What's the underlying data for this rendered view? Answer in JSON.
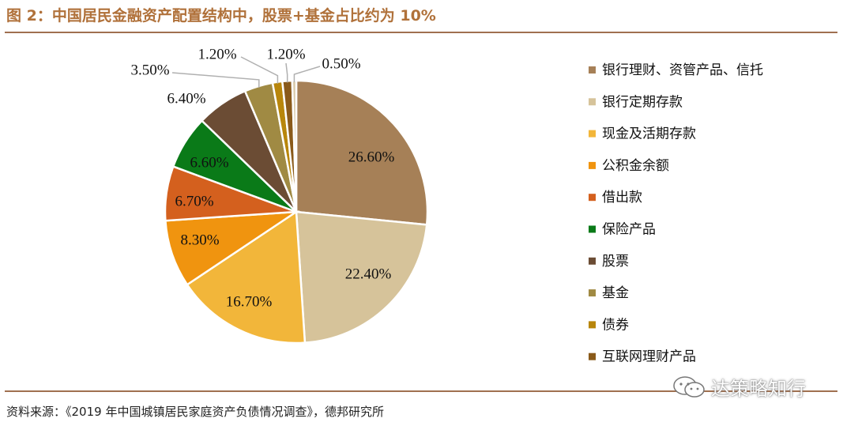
{
  "header": {
    "title": "图 2：中国居民金融资产配置结构中，股票+基金占比约为 10%"
  },
  "footer": {
    "source": "资料来源：《2019 年中国城镇居民家庭资产负债情况调查》，德邦研究所",
    "watermark": "达策略知行"
  },
  "chart_data": {
    "type": "pie",
    "title": "",
    "legend_position": "right",
    "start_angle": "12 o'clock, clockwise",
    "slices": [
      {
        "label": "银行理财、资管产品、信托",
        "value": 26.6,
        "text": "26.60%",
        "color": "#a68057"
      },
      {
        "label": "银行定期存款",
        "value": 22.4,
        "text": "22.40%",
        "color": "#d6c39a"
      },
      {
        "label": "现金及活期存款",
        "value": 16.7,
        "text": "16.70%",
        "color": "#f2b63a"
      },
      {
        "label": "公积金余额",
        "value": 8.3,
        "text": "8.30%",
        "color": "#f0940f"
      },
      {
        "label": "借出款",
        "value": 6.7,
        "text": "6.70%",
        "color": "#d4601e"
      },
      {
        "label": "保险产品",
        "value": 6.6,
        "text": "6.60%",
        "color": "#0a7a18"
      },
      {
        "label": "股票",
        "value": 6.4,
        "text": "6.40%",
        "color": "#6b4c34"
      },
      {
        "label": "基金",
        "value": 3.5,
        "text": "3.50%",
        "color": "#a08a43"
      },
      {
        "label": "债券",
        "value": 1.2,
        "text": "1.20%",
        "color": "#b8860b"
      },
      {
        "label": "互联网理财产品",
        "value": 1.2,
        "text": "1.20%",
        "color": "#8a5a1a"
      },
      {
        "label": "",
        "value": 0.5,
        "text": "0.50%",
        "color": "#d9c9a8"
      }
    ]
  }
}
